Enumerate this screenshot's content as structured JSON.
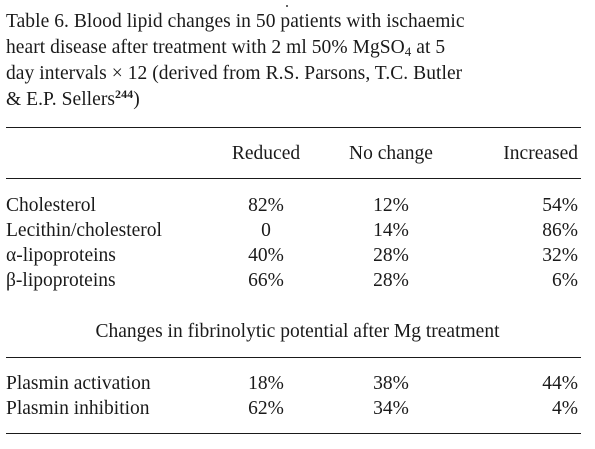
{
  "caption": {
    "line1": "Table 6. Blood lipid changes in 50 patients with ischaemic",
    "line2_pre": "heart disease after treatment with 2 ml 50% MgSO",
    "line2_sub": "4",
    "line2_post": " at 5",
    "line3": "day intervals × 12 (derived from R.S. Parsons, T.C. Butler",
    "line4_pre": "& E.P. Sellers",
    "line4_sup": "244",
    "line4_post": ")"
  },
  "table": {
    "columns": [
      "Reduced",
      "No change",
      "Increased"
    ],
    "lipid_rows": [
      {
        "label": "Cholesterol",
        "values": [
          "82%",
          "12%",
          "54%"
        ]
      },
      {
        "label": "Lecithin/cholesterol",
        "values": [
          "0",
          "14%",
          "86%"
        ]
      },
      {
        "label": "α-lipoproteins",
        "values": [
          "40%",
          "28%",
          "32%"
        ]
      },
      {
        "label": "β-lipoproteins",
        "values": [
          "66%",
          "28%",
          "6%"
        ]
      }
    ],
    "section_title": "Changes in fibrinolytic potential after Mg treatment",
    "fibrinolytic_rows": [
      {
        "label": "Plasmin activation",
        "values": [
          "18%",
          "38%",
          "44%"
        ]
      },
      {
        "label": "Plasmin inhibition",
        "values": [
          "62%",
          "34%",
          "4%"
        ]
      }
    ]
  }
}
